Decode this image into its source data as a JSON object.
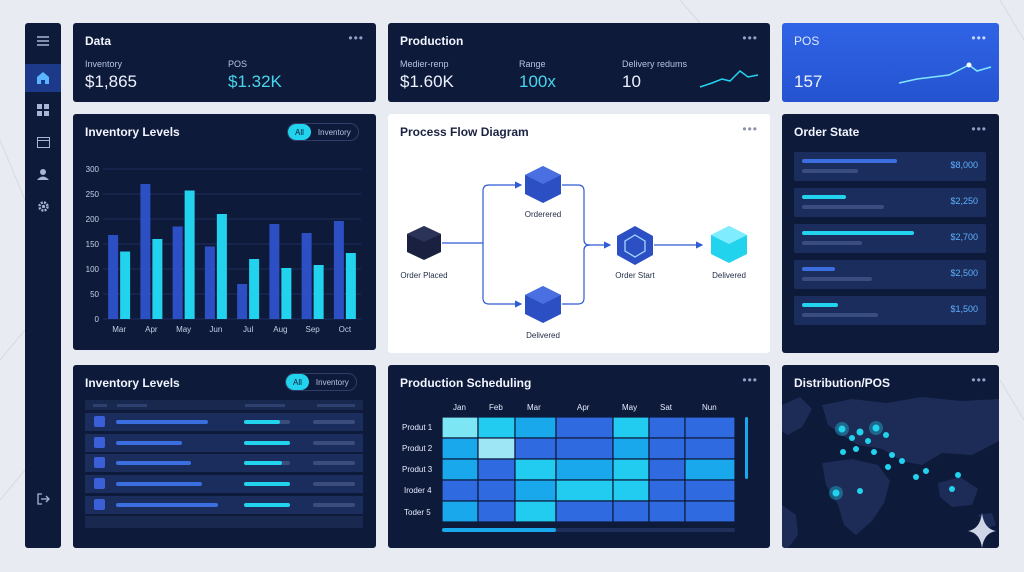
{
  "sidebar": {
    "items": [
      {
        "icon": "menu-icon"
      },
      {
        "icon": "home-icon",
        "active": true
      },
      {
        "icon": "grid-icon"
      },
      {
        "icon": "calendar-icon"
      },
      {
        "icon": "user-icon"
      },
      {
        "icon": "gear-icon"
      }
    ],
    "bottom_icon": "logout-icon"
  },
  "data_card": {
    "title": "Data",
    "metrics": [
      {
        "label": "Inventory",
        "value": "$1,865"
      },
      {
        "label": "POS",
        "value": "$1.32K"
      }
    ]
  },
  "production_card": {
    "title": "Production",
    "metrics": [
      {
        "label": "Medier-renp",
        "value": "$1.60K"
      },
      {
        "label": "Range",
        "value": "100x"
      },
      {
        "label": "Delivery redums",
        "value": "10"
      }
    ]
  },
  "pos_card": {
    "title": "POS",
    "value": "157"
  },
  "inventory_chart": {
    "title": "Inventory Levels",
    "toggle": [
      "All",
      "Inventory"
    ]
  },
  "chart_data": {
    "type": "bar",
    "categories": [
      "Mar",
      "Apr",
      "May",
      "Jun",
      "Jul",
      "Aug",
      "Sep",
      "Oct"
    ],
    "series": [
      {
        "values": [
          168,
          270,
          185,
          145,
          70,
          190,
          172,
          196
        ]
      },
      {
        "values": [
          135,
          160,
          257,
          210,
          120,
          102,
          108,
          132
        ]
      }
    ],
    "yticks": [
      0,
      50,
      100,
      150,
      200,
      250,
      300
    ],
    "ylim": [
      0,
      300
    ],
    "colors": [
      "#2d4fc4",
      "#22d3ee"
    ]
  },
  "flow": {
    "title": "Process Flow Diagram",
    "nodes": {
      "placed": "Order Placed",
      "ordered": "Orderered",
      "delivered_mid": "Delivered",
      "start": "Order Start",
      "delivered_end": "Delivered"
    }
  },
  "order_state": {
    "title": "Order State",
    "rows": [
      {
        "amount": "$8,000",
        "bar": "#3b6fe0"
      },
      {
        "amount": "$2,250",
        "bar": "#22d3ee"
      },
      {
        "amount": "$2,700",
        "bar": "#22d3ee"
      },
      {
        "amount": "$2,500",
        "bar": "#3b6fe0"
      },
      {
        "amount": "$1,500",
        "bar": "#22d3ee"
      }
    ]
  },
  "inventory_table": {
    "title": "Inventory Levels",
    "toggle": [
      "All",
      "Inventory"
    ]
  },
  "scheduling": {
    "title": "Production Scheduling",
    "months": [
      "Jan",
      "Feb",
      "Mar",
      "Apr",
      "May",
      "Sat",
      "Nun"
    ],
    "rows": [
      "Produt 1",
      "Produt 2",
      "Produt 3",
      "Iroder 4",
      "Toder 5"
    ]
  },
  "distribution": {
    "title": "Distribution/POS"
  },
  "colors": {
    "panel": "#0e1a3a",
    "accent_cyan": "#22d3ee",
    "accent_blue": "#2d4fc4"
  }
}
